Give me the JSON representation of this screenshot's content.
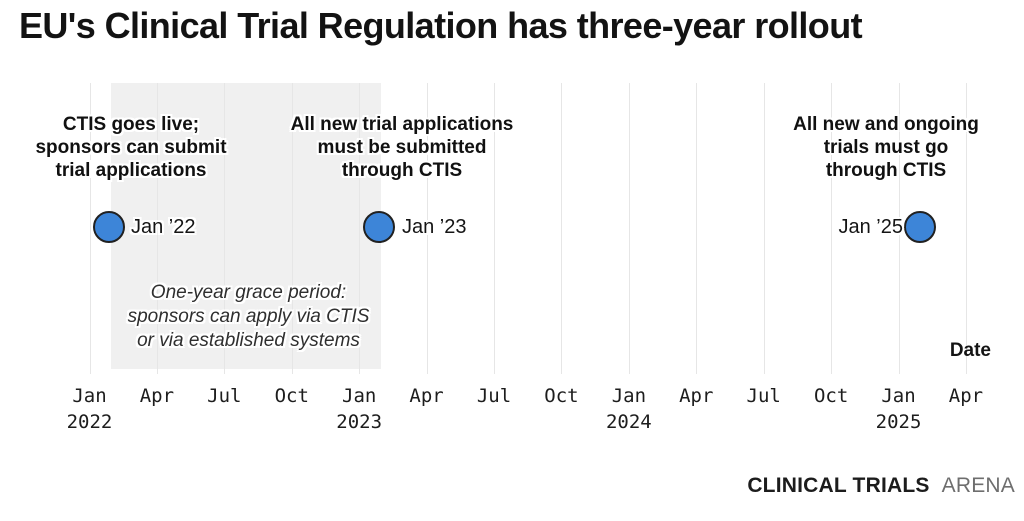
{
  "title": "EU's Clinical Trial Regulation has three-year rollout",
  "axis": {
    "label": "Date",
    "ticks": [
      {
        "month": "Jan",
        "year": "2022"
      },
      {
        "month": "Apr"
      },
      {
        "month": "Jul"
      },
      {
        "month": "Oct"
      },
      {
        "month": "Jan",
        "year": "2023"
      },
      {
        "month": "Apr"
      },
      {
        "month": "Jul"
      },
      {
        "month": "Oct"
      },
      {
        "month": "Jan",
        "year": "2024"
      },
      {
        "month": "Apr"
      },
      {
        "month": "Jul"
      },
      {
        "month": "Oct"
      },
      {
        "month": "Jan",
        "year": "2025"
      },
      {
        "month": "Apr"
      }
    ]
  },
  "events": [
    {
      "date_label": "Jan ’22",
      "lines": [
        "CTIS goes live;",
        "sponsors can submit",
        "trial applications"
      ]
    },
    {
      "date_label": "Jan ’23",
      "lines": [
        "All new trial applications",
        "must be submitted",
        "through CTIS"
      ]
    },
    {
      "date_label": "Jan ’25",
      "lines": [
        "All new and ongoing",
        "trials must go",
        "through CTIS"
      ]
    }
  ],
  "grace_period": {
    "lines": [
      "One-year grace period:",
      "sponsors can apply via CTIS",
      "or via established systems"
    ]
  },
  "branding": {
    "bold": "CLINICAL TRIALS",
    "light": "ARENA"
  },
  "colors": {
    "marker_fill": "#3d85d8",
    "marker_outline": "#212121",
    "grace_band": "#f0f0f0",
    "gridline": "#e6e6e6",
    "text": "#141414"
  },
  "chart_data": {
    "type": "timeline",
    "title": "EU's Clinical Trial Regulation has three-year rollout",
    "xlabel": "Date",
    "x_ticks": [
      "Jan 2022",
      "Apr",
      "Jul",
      "Oct",
      "Jan 2023",
      "Apr",
      "Jul",
      "Oct",
      "Jan 2024",
      "Apr",
      "Jul",
      "Oct",
      "Jan 2025",
      "Apr"
    ],
    "x_range": [
      "Jan 2022",
      "Apr 2025"
    ],
    "grid": true,
    "legend": false,
    "events": [
      {
        "date": "Jan ’22",
        "annotation": "CTIS goes live; sponsors can submit trial applications",
        "position_months_from_jan_2022": 1
      },
      {
        "date": "Jan ’23",
        "annotation": "All new trial applications must be submitted through CTIS",
        "position_months_from_jan_2022": 13
      },
      {
        "date": "Jan ’25",
        "annotation": "All new and ongoing trials must go through CTIS",
        "position_months_from_jan_2022": 37
      }
    ],
    "shaded_region": {
      "label": "One-year grace period: sponsors can apply via CTIS or via established systems",
      "from_months": 1,
      "to_months": 13
    },
    "marker_style": {
      "shape": "circle",
      "fill": "#3d85d8",
      "outline": "#212121"
    },
    "source": "CLINICAL TRIALS ARENA"
  }
}
